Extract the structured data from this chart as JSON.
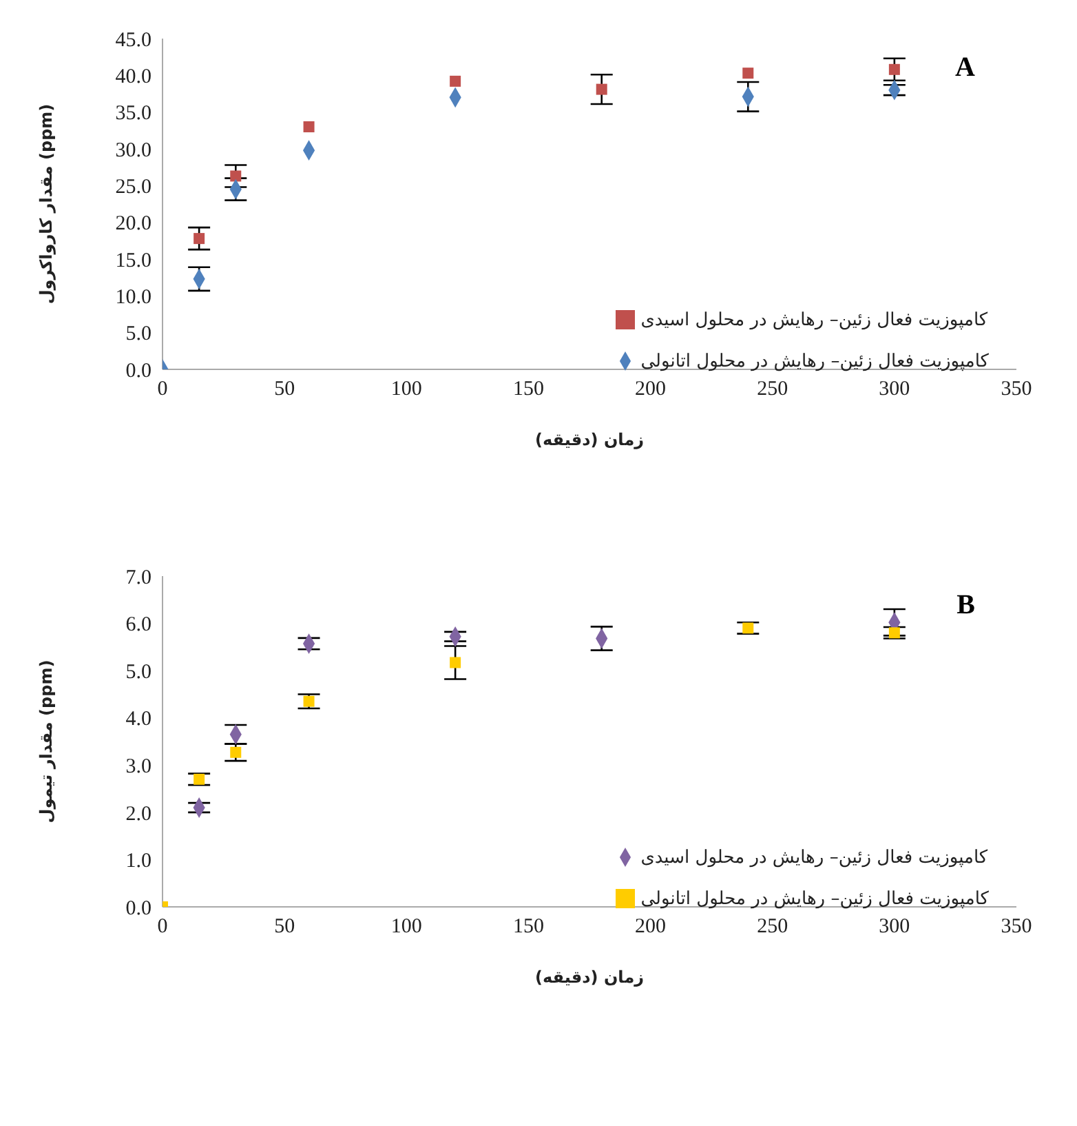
{
  "chart_data": [
    {
      "type": "scatter",
      "xlabel": "زمان (دقیقه)",
      "ylabel": "مقدار کارواکرول   (ppm)",
      "annotations": [
        "A"
      ],
      "x": [
        0,
        15,
        30,
        60,
        120,
        180,
        240,
        300
      ],
      "xlim": [
        0,
        350
      ],
      "xticks": [
        0,
        50,
        100,
        150,
        200,
        250,
        300,
        350
      ],
      "ylim": [
        0,
        45
      ],
      "yticks": [
        {
          "value": 0,
          "label": "0.0"
        },
        {
          "value": 5,
          "label": "5.0"
        },
        {
          "value": 10,
          "label": "10.0"
        },
        {
          "value": 15,
          "label": "15.0"
        },
        {
          "value": 20,
          "label": "20.0"
        },
        {
          "value": 25,
          "label": "25.0"
        },
        {
          "value": 30,
          "label": "30.0"
        },
        {
          "value": 35,
          "label": "35.0"
        },
        {
          "value": 40,
          "label": "40.0"
        },
        {
          "value": 45,
          "label": "45.0"
        }
      ],
      "grid": false,
      "legend": "bottom right",
      "series": [
        {
          "name": "کامپوزیت فعال زئین– رهایش در محلول اسیدی",
          "color": "#c0504d",
          "marker": "square",
          "values": [
            null,
            17.8,
            26.3,
            33.0,
            39.2,
            38.1,
            40.3,
            40.8
          ],
          "errors": [
            null,
            1.5,
            1.5,
            null,
            null,
            2.0,
            null,
            1.5
          ]
        },
        {
          "name": "کامپوزیت فعال زئین– رهایش در محلول اتانولی",
          "color": "#4f81bd",
          "marker": "diamond",
          "values": [
            0,
            12.3,
            24.5,
            29.8,
            37.0,
            null,
            37.1,
            38.0
          ],
          "errors": [
            null,
            1.6,
            1.5,
            null,
            null,
            null,
            2.0,
            0.7
          ]
        }
      ]
    },
    {
      "type": "scatter",
      "xlabel": "زمان (دقیقه)",
      "ylabel": "مقدار تیمول (ppm)",
      "annotations": [
        "B"
      ],
      "x": [
        0,
        15,
        30,
        60,
        120,
        180,
        240,
        300
      ],
      "xlim": [
        0,
        350
      ],
      "xticks": [
        0,
        50,
        100,
        150,
        200,
        250,
        300,
        350
      ],
      "ylim": [
        0,
        7
      ],
      "yticks": [
        {
          "value": 0,
          "label": "0.0"
        },
        {
          "value": 1,
          "label": "1.0"
        },
        {
          "value": 2,
          "label": "2.0"
        },
        {
          "value": 3,
          "label": "3.0"
        },
        {
          "value": 4,
          "label": "4.0"
        },
        {
          "value": 5,
          "label": "5.0"
        },
        {
          "value": 6,
          "label": "6.0"
        },
        {
          "value": 7,
          "label": "7.0"
        }
      ],
      "grid": false,
      "legend": "bottom right",
      "series": [
        {
          "name": "کامپوزیت فعال زئین– رهایش در محلول اسیدی",
          "color": "#8064a2",
          "marker": "diamond",
          "values": [
            null,
            2.1,
            3.65,
            5.57,
            5.72,
            5.68,
            null,
            6.02
          ],
          "errors": [
            null,
            0.1,
            0.2,
            0.12,
            0.1,
            0.25,
            null,
            0.28
          ]
        },
        {
          "name": "کامپوزیت فعال زئین– رهایش در محلول اتانولی",
          "color": "#ffcc00",
          "marker": "square",
          "values": [
            0,
            2.7,
            3.27,
            4.35,
            5.17,
            null,
            5.9,
            5.8
          ],
          "errors": [
            null,
            0.12,
            0.18,
            0.15,
            0.35,
            null,
            0.12,
            0.12
          ]
        }
      ]
    }
  ]
}
